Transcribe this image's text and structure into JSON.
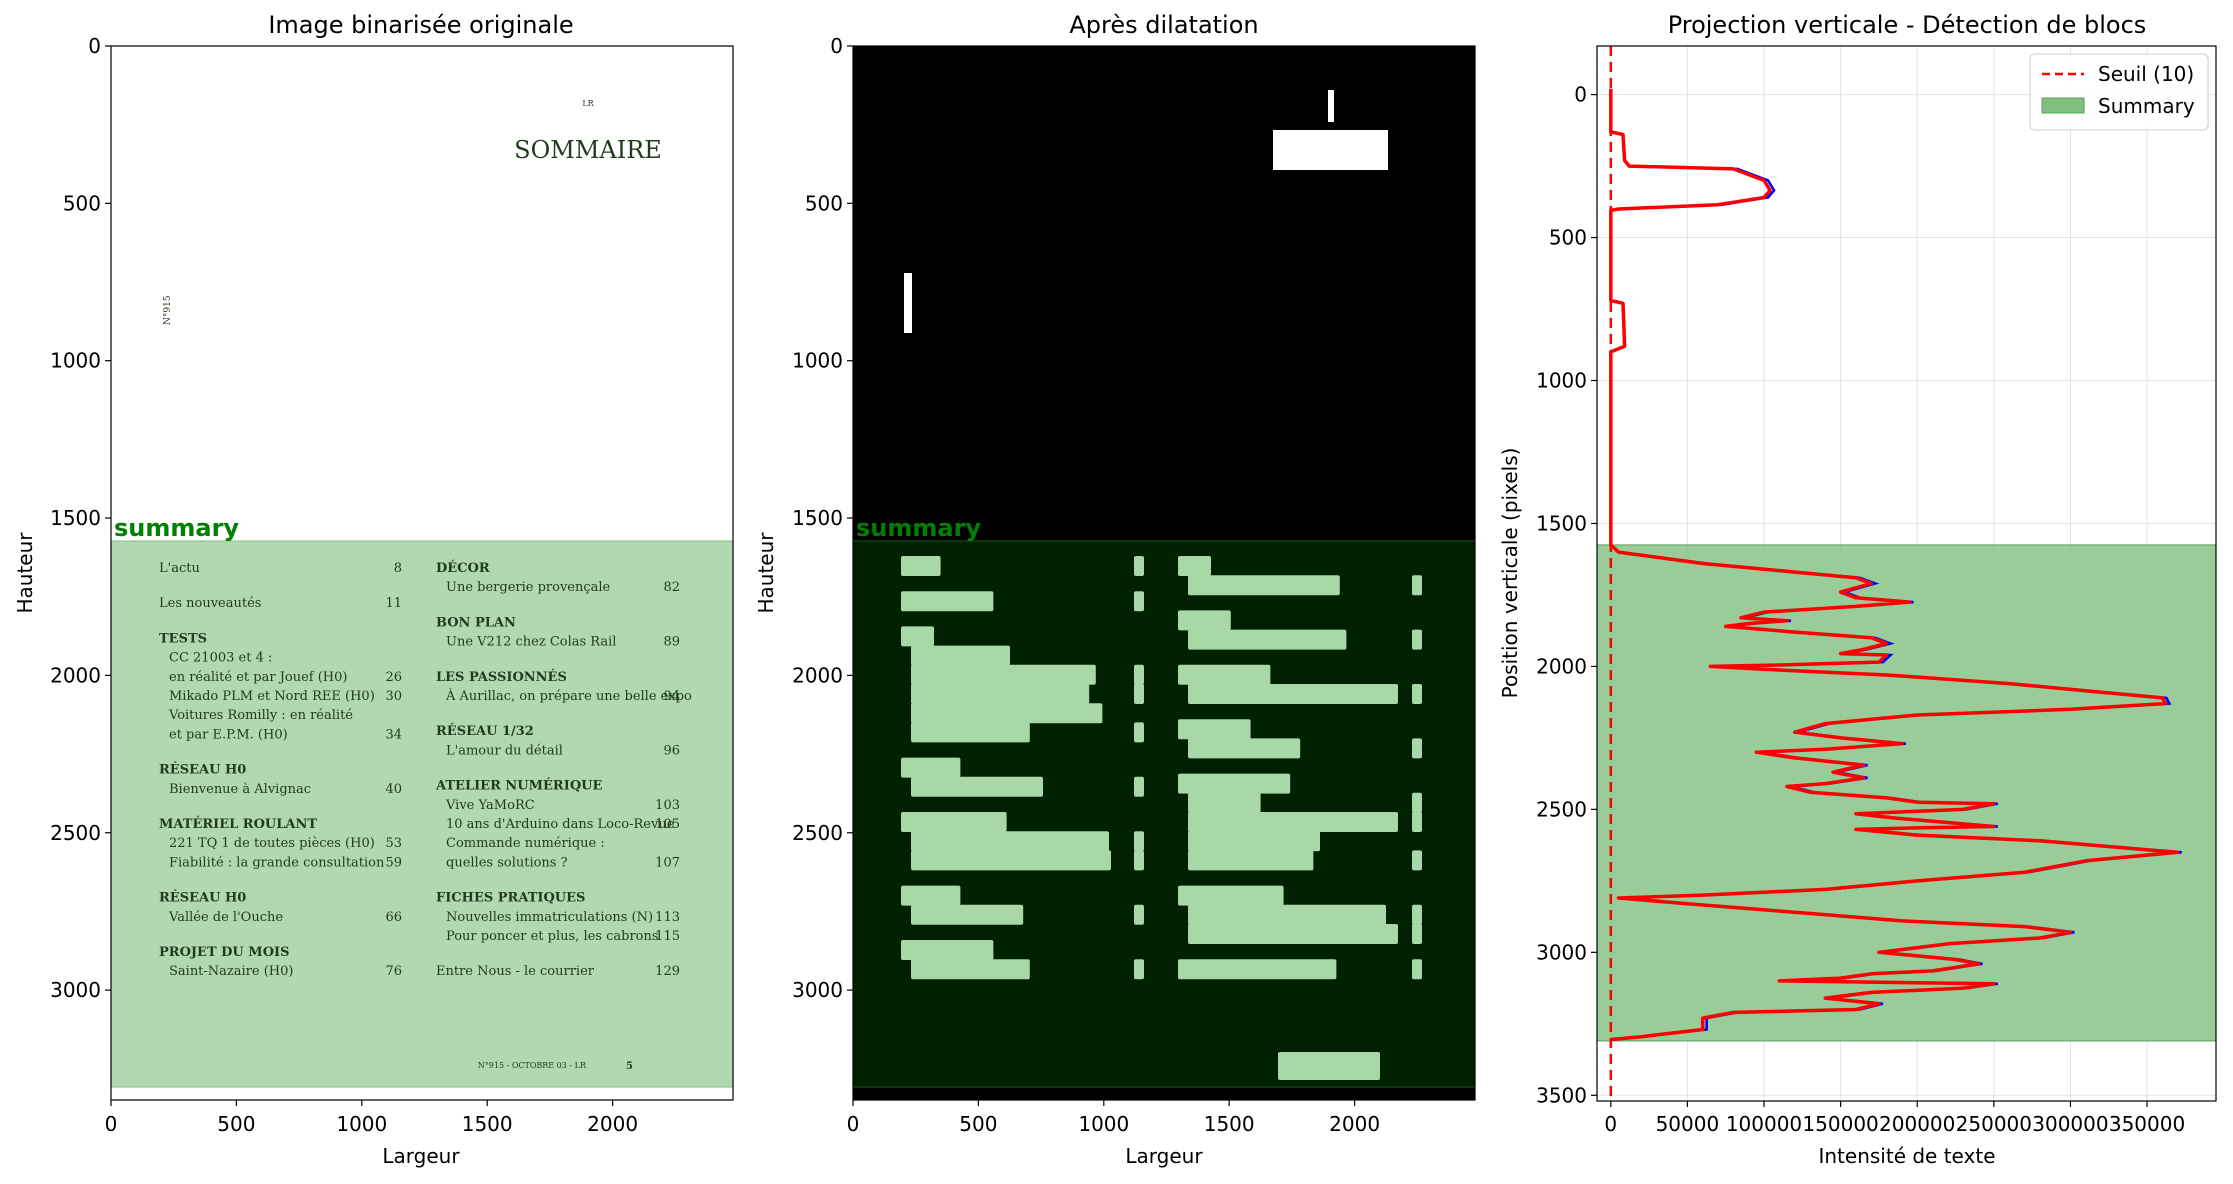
{
  "figure": {
    "panel1": {
      "title": "Image binarisée originale",
      "xlabel": "Largeur",
      "ylabel": "Hauteur",
      "zone_label": "summary",
      "xticks": [
        "0",
        "500",
        "1000",
        "1500",
        "2000"
      ],
      "yticks": [
        "0",
        "500",
        "1000",
        "1500",
        "2000",
        "2500",
        "3000"
      ]
    },
    "panel2": {
      "title": "Après dilatation",
      "xlabel": "Largeur",
      "ylabel": "Hauteur",
      "zone_label": "summary",
      "xticks": [
        "0",
        "500",
        "1000",
        "1500",
        "2000"
      ],
      "yticks": [
        "0",
        "500",
        "1000",
        "1500",
        "2000",
        "2500",
        "3000"
      ]
    },
    "panel3": {
      "title": "Projection verticale - Détection de blocs",
      "xlabel": "Intensité de texte",
      "ylabel": "Position verticale (pixels)",
      "xticks": [
        "0",
        "50000",
        "100000",
        "150000",
        "200000",
        "250000",
        "300000",
        "350000"
      ],
      "yticks": [
        "0",
        "500",
        "1000",
        "1500",
        "2000",
        "2500",
        "3000",
        "3500"
      ],
      "legend": {
        "threshold": "Seuil (10)",
        "zone": "Summary"
      }
    }
  },
  "document": {
    "header_small": "LR",
    "header_title": "SOMMAIRE",
    "side_text": "N°915",
    "footer": "N°915 - OCTOBRE 03 - LR",
    "footer_page": "5",
    "left_col": [
      {
        "t": "h2",
        "text": "L'actu",
        "num": "8"
      },
      {
        "t": "h2",
        "text": "Les nouveautés",
        "num": "11"
      },
      {
        "t": "h",
        "text": "TESTS"
      },
      {
        "t": "i",
        "text": "CC 21003 et 4 :"
      },
      {
        "t": "i",
        "text": "en réalité et par Jouef (H0)",
        "num": "26"
      },
      {
        "t": "i",
        "text": "Mikado PLM et Nord REE (H0)",
        "num": "30"
      },
      {
        "t": "i",
        "text": "Voitures Romilly : en réalité"
      },
      {
        "t": "i",
        "text": "et par E.P.M. (H0)",
        "num": "34"
      },
      {
        "t": "h",
        "text": "RÉSEAU H0"
      },
      {
        "t": "i",
        "text": "Bienvenue à Alvignac",
        "num": "40"
      },
      {
        "t": "h",
        "text": "MATÉRIEL ROULANT"
      },
      {
        "t": "i",
        "text": "221 TQ 1 de toutes pièces (H0)",
        "num": "53"
      },
      {
        "t": "i",
        "text": "Fiabilité : la grande consultation",
        "num": "59"
      },
      {
        "t": "h",
        "text": "RÉSEAU H0"
      },
      {
        "t": "i",
        "text": "Vallée de l'Ouche",
        "num": "66"
      },
      {
        "t": "h",
        "text": "PROJET DU MOIS"
      },
      {
        "t": "i",
        "text": "Saint-Nazaire (H0)",
        "num": "76"
      }
    ],
    "right_col": [
      {
        "t": "h",
        "text": "DÉCOR"
      },
      {
        "t": "i",
        "text": "Une bergerie provençale",
        "num": "82"
      },
      {
        "t": "h",
        "text": "BON PLAN"
      },
      {
        "t": "i",
        "text": "Une V212 chez Colas Rail",
        "num": "89"
      },
      {
        "t": "h",
        "text": "LES PASSIONNÉS"
      },
      {
        "t": "i",
        "text": "À Aurillac, on prépare une belle expo",
        "num": "94"
      },
      {
        "t": "h",
        "text": "RÉSEAU 1/32"
      },
      {
        "t": "i",
        "text": "L'amour du détail",
        "num": "96"
      },
      {
        "t": "h",
        "text": "ATELIER NUMÉRIQUE"
      },
      {
        "t": "i",
        "text": "Vive YaMoRC",
        "num": "103"
      },
      {
        "t": "i",
        "text": "10 ans d'Arduino dans Loco-Revue",
        "num": "105"
      },
      {
        "t": "i",
        "text": "Commande numérique :"
      },
      {
        "t": "i",
        "text": "quelles solutions ?",
        "num": "107"
      },
      {
        "t": "h",
        "text": "FICHES PRATIQUES"
      },
      {
        "t": "i",
        "text": "Nouvelles immatriculations (N)",
        "num": "113"
      },
      {
        "t": "i",
        "text": "Pour poncer et plus, les cabrons",
        "num": "115"
      },
      {
        "t": "h2",
        "text": "Entre Nous - le courrier",
        "num": "129"
      }
    ]
  },
  "chart_data": [
    {
      "type": "image",
      "title": "Image binarisée originale",
      "xlabel": "Largeur",
      "ylabel": "Hauteur",
      "xlim": [
        0,
        2480
      ],
      "ylim": [
        3350,
        0
      ],
      "zones": [
        {
          "label": "summary",
          "x": [
            0,
            2480
          ],
          "y": [
            1575,
            3310
          ],
          "color": "#b2d8b2"
        }
      ]
    },
    {
      "type": "image",
      "title": "Après dilatation",
      "xlabel": "Largeur",
      "ylabel": "Hauteur",
      "xlim": [
        0,
        2480
      ],
      "ylim": [
        3350,
        0
      ],
      "zones": [
        {
          "label": "summary",
          "x": [
            0,
            2480
          ],
          "y": [
            1575,
            3310
          ],
          "color": "#002100"
        }
      ]
    },
    {
      "type": "line",
      "title": "Projection verticale - Détection de blocs",
      "xlabel": "Intensité de texte",
      "ylabel": "Position verticale (pixels)",
      "xlim": [
        -9000,
        395000
      ],
      "ylim": [
        3520,
        -170
      ],
      "grid": true,
      "legend_position": "top-right",
      "threshold": {
        "label": "Seuil (10)",
        "x": 10,
        "color": "#ff0000"
      },
      "zone": {
        "label": "Summary",
        "y": [
          1575,
          3310
        ],
        "color": "#7fbf7f"
      },
      "series": [
        {
          "color": "#ff0000",
          "points": [
            [
              0,
              -20
            ],
            [
              0,
              130
            ],
            [
              8000,
              140
            ],
            [
              9000,
              230
            ],
            [
              12000,
              250
            ],
            [
              80000,
              260
            ],
            [
              100000,
              300
            ],
            [
              104000,
              335
            ],
            [
              100000,
              360
            ],
            [
              70000,
              385
            ],
            [
              5000,
              400
            ],
            [
              0,
              405
            ],
            [
              0,
              720
            ],
            [
              8000,
              730
            ],
            [
              9000,
              880
            ],
            [
              0,
              900
            ],
            [
              0,
              1575
            ],
            [
              5000,
              1600
            ],
            [
              60000,
              1640
            ],
            [
              120000,
              1670
            ],
            [
              160000,
              1690
            ],
            [
              170000,
              1710
            ],
            [
              150000,
              1740
            ],
            [
              160000,
              1760
            ],
            [
              195000,
              1775
            ],
            [
              160000,
              1790
            ],
            [
              100000,
              1810
            ],
            [
              85000,
              1830
            ],
            [
              115000,
              1840
            ],
            [
              90000,
              1850
            ],
            [
              75000,
              1860
            ],
            [
              120000,
              1880
            ],
            [
              170000,
              1900
            ],
            [
              180000,
              1920
            ],
            [
              165000,
              1940
            ],
            [
              150000,
              1955
            ],
            [
              180000,
              1960
            ],
            [
              175000,
              1985
            ],
            [
              110000,
              1995
            ],
            [
              65000,
              2000
            ],
            [
              100000,
              2010
            ],
            [
              180000,
              2030
            ],
            [
              260000,
              2060
            ],
            [
              320000,
              2090
            ],
            [
              360000,
              2110
            ],
            [
              362000,
              2130
            ],
            [
              300000,
              2150
            ],
            [
              200000,
              2170
            ],
            [
              140000,
              2200
            ],
            [
              120000,
              2230
            ],
            [
              150000,
              2250
            ],
            [
              190000,
              2270
            ],
            [
              140000,
              2290
            ],
            [
              95000,
              2300
            ],
            [
              120000,
              2320
            ],
            [
              165000,
              2345
            ],
            [
              145000,
              2370
            ],
            [
              165000,
              2390
            ],
            [
              140000,
              2410
            ],
            [
              115000,
              2420
            ],
            [
              130000,
              2440
            ],
            [
              180000,
              2460
            ],
            [
              200000,
              2475
            ],
            [
              250000,
              2480
            ],
            [
              230000,
              2500
            ],
            [
              160000,
              2515
            ],
            [
              185000,
              2530
            ],
            [
              250000,
              2560
            ],
            [
              195000,
              2565
            ],
            [
              160000,
              2570
            ],
            [
              200000,
              2590
            ],
            [
              280000,
              2610
            ],
            [
              370000,
              2650
            ],
            [
              310000,
              2680
            ],
            [
              290000,
              2700
            ],
            [
              270000,
              2720
            ],
            [
              200000,
              2750
            ],
            [
              140000,
              2780
            ],
            [
              60000,
              2800
            ],
            [
              5000,
              2810
            ],
            [
              50000,
              2830
            ],
            [
              120000,
              2860
            ],
            [
              190000,
              2890
            ],
            [
              270000,
              2910
            ],
            [
              300000,
              2930
            ],
            [
              280000,
              2950
            ],
            [
              220000,
              2970
            ],
            [
              175000,
              3000
            ],
            [
              225000,
              3025
            ],
            [
              240000,
              3040
            ],
            [
              210000,
              3065
            ],
            [
              170000,
              3075
            ],
            [
              150000,
              3090
            ],
            [
              110000,
              3100
            ],
            [
              250000,
              3110
            ],
            [
              230000,
              3125
            ],
            [
              170000,
              3140
            ],
            [
              140000,
              3160
            ],
            [
              175000,
              3180
            ],
            [
              160000,
              3200
            ],
            [
              80000,
              3210
            ],
            [
              60000,
              3230
            ],
            [
              60000,
              3270
            ],
            [
              20000,
              3295
            ],
            [
              0,
              3305
            ]
          ]
        }
      ]
    }
  ]
}
